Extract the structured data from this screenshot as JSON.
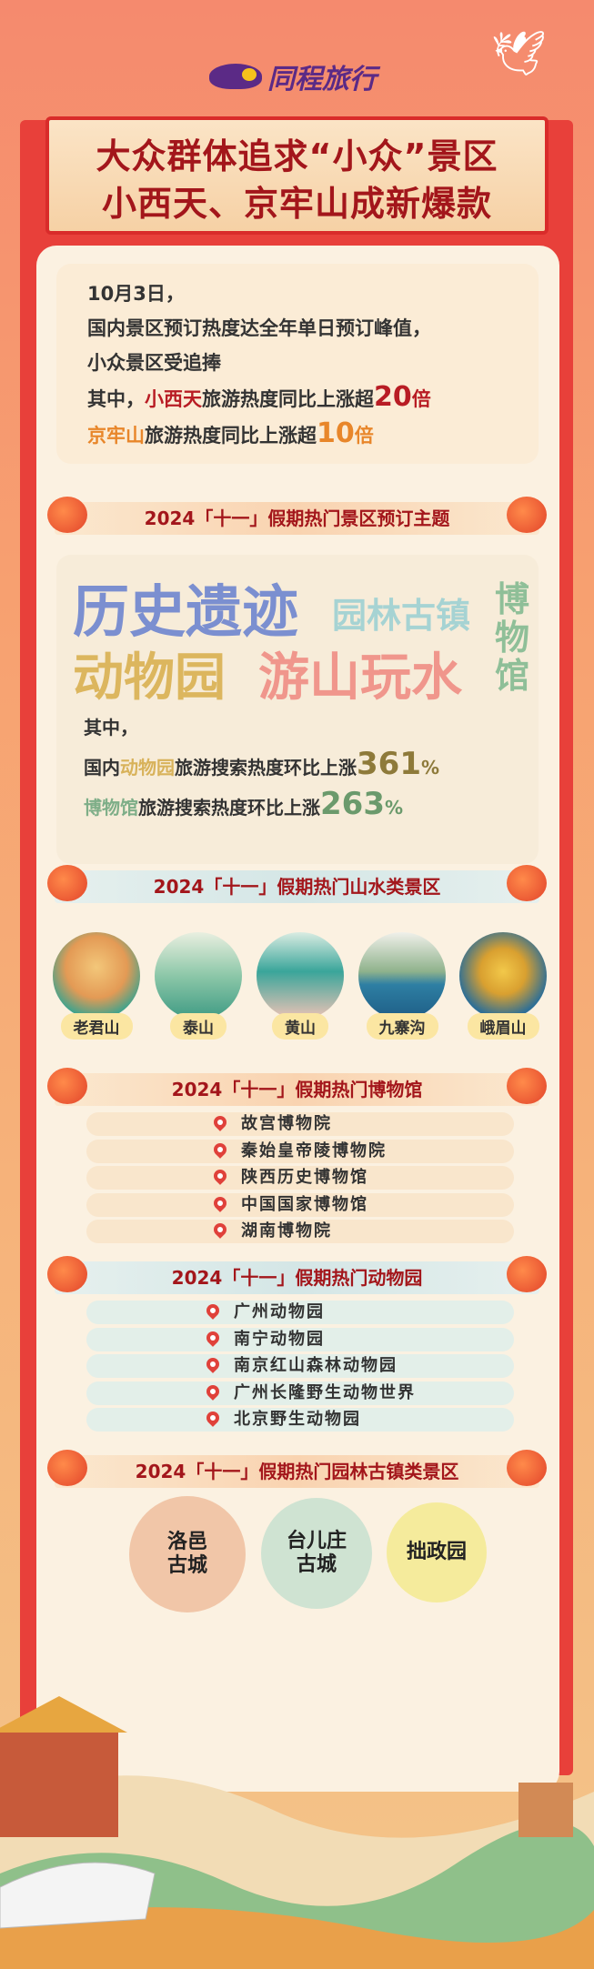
{
  "brand": {
    "name": "同程旅行"
  },
  "title": {
    "line1": "大众群体追求“小众”景区",
    "line2": "小西天、京牢山成新爆款"
  },
  "intro": {
    "date": "10月3日，",
    "line2": "国内景区预订热度达全年单日预订峰值，",
    "line3": "小众景区受追捧",
    "line4_prefix": "其中，",
    "line4_place": "小西天",
    "line4_text": "旅游热度同比上涨超",
    "line4_num": "20",
    "line4_unit": "倍",
    "line5_place": "京牢山",
    "line5_text": "旅游热度同比上涨超",
    "line5_num": "10",
    "line5_unit": "倍"
  },
  "sections": {
    "themes": "2024「十一」假期热门景区预订主题",
    "scenic": "2024「十一」假期热门山水类景区",
    "museums": "2024「十一」假期热门博物馆",
    "zoos": "2024「十一」假期热门动物园",
    "towns": "2024「十一」假期热门园林古镇类景区"
  },
  "themes": {
    "words": [
      "历史遗迹",
      "园林古镇",
      "博物馆",
      "动物园",
      "游山玩水"
    ],
    "colors": {
      "history": "#7b8fd0",
      "garden": "#a6d3d3",
      "museum": "#8fbf98",
      "zoo": "#dcb65e",
      "mountain": "#f0968c"
    },
    "stat_intro": "其中，",
    "stat1_prefix": "国内",
    "stat1_place": "动物园",
    "stat1_text": "旅游搜索热度环比上涨",
    "stat1_num": "361",
    "stat1_unit": "%",
    "stat2_place": "博物馆",
    "stat2_text": "旅游搜索热度环比上涨",
    "stat2_num": "263",
    "stat2_unit": "%"
  },
  "scenic": [
    "老君山",
    "泰山",
    "黄山",
    "九寨沟",
    "峨眉山"
  ],
  "museums": [
    "故宫博物院",
    "秦始皇帝陵博物院",
    "陕西历史博物馆",
    "中国国家博物馆",
    "湖南博物院"
  ],
  "zoos": [
    "广州动物园",
    "南宁动物园",
    "南京红山森林动物园",
    "广州长隆野生动物世界",
    "北京野生动物园"
  ],
  "towns": [
    {
      "line1": "洛邑",
      "line2": "古城"
    },
    {
      "line1": "台儿庄",
      "line2": "古城"
    },
    {
      "line1": "拙政园",
      "line2": ""
    }
  ],
  "accent": {
    "title_red": "#a3161b",
    "frame_red": "#e8403a",
    "brand_purple": "#5b2a86"
  }
}
